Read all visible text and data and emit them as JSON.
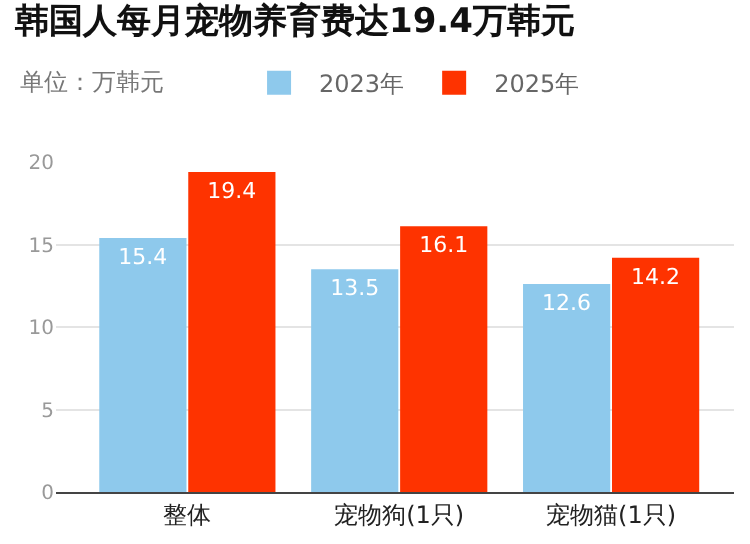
{
  "chart_data": {
    "type": "bar",
    "title": "韩国人每月宠物养育费达19.4万韩元",
    "subtitle": "单位：万韩元",
    "categories": [
      "整体",
      "宠物狗(1只)",
      "宠物猫(1只)"
    ],
    "series": [
      {
        "name": "2023年",
        "color": "#8ec9ec",
        "values": [
          15.4,
          13.5,
          12.6
        ]
      },
      {
        "name": "2025年",
        "color": "#fe3300",
        "values": [
          19.4,
          16.1,
          14.2
        ]
      }
    ],
    "ylim": [
      0,
      20
    ],
    "yticks": [
      0,
      5,
      10,
      15,
      20
    ],
    "grid": "y",
    "legend": "top left",
    "data_labels": true
  }
}
